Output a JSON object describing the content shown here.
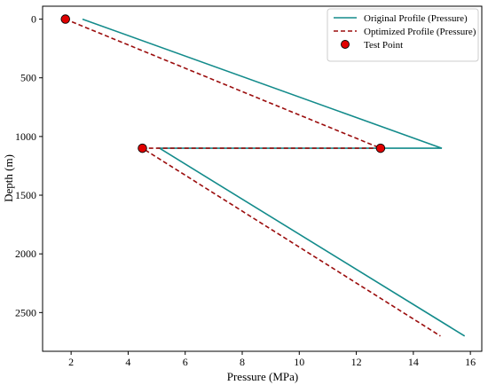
{
  "chart_data": {
    "type": "line",
    "title": "",
    "xlabel": "Pressure (MPa)",
    "ylabel": "Depth (m)",
    "xlim": [
      1.0,
      16.4
    ],
    "ylim": [
      2830,
      -110
    ],
    "y_inverted": true,
    "xticks": [
      2,
      4,
      6,
      8,
      10,
      12,
      14,
      16
    ],
    "yticks": [
      0,
      500,
      1000,
      1500,
      2000,
      2500
    ],
    "grid": false,
    "legend_position": "top-right",
    "series": [
      {
        "name": "Original Profile (Pressure)",
        "style": "solid",
        "color": "#138b8b",
        "points": [
          [
            2.4,
            0
          ],
          [
            15.0,
            1100
          ],
          [
            5.1,
            1100
          ],
          [
            15.8,
            2700
          ]
        ]
      },
      {
        "name": "Optimized Profile (Pressure)",
        "style": "dashed",
        "color": "#9b0d0d",
        "points": [
          [
            1.8,
            0
          ],
          [
            12.85,
            1100
          ],
          [
            4.5,
            1100
          ],
          [
            14.95,
            2700
          ]
        ]
      },
      {
        "name": "Test Point",
        "style": "marker",
        "color": "#e00000",
        "edge_color": "#000000",
        "points": [
          [
            1.8,
            0
          ],
          [
            12.85,
            1100
          ],
          [
            4.5,
            1100
          ]
        ]
      }
    ]
  }
}
